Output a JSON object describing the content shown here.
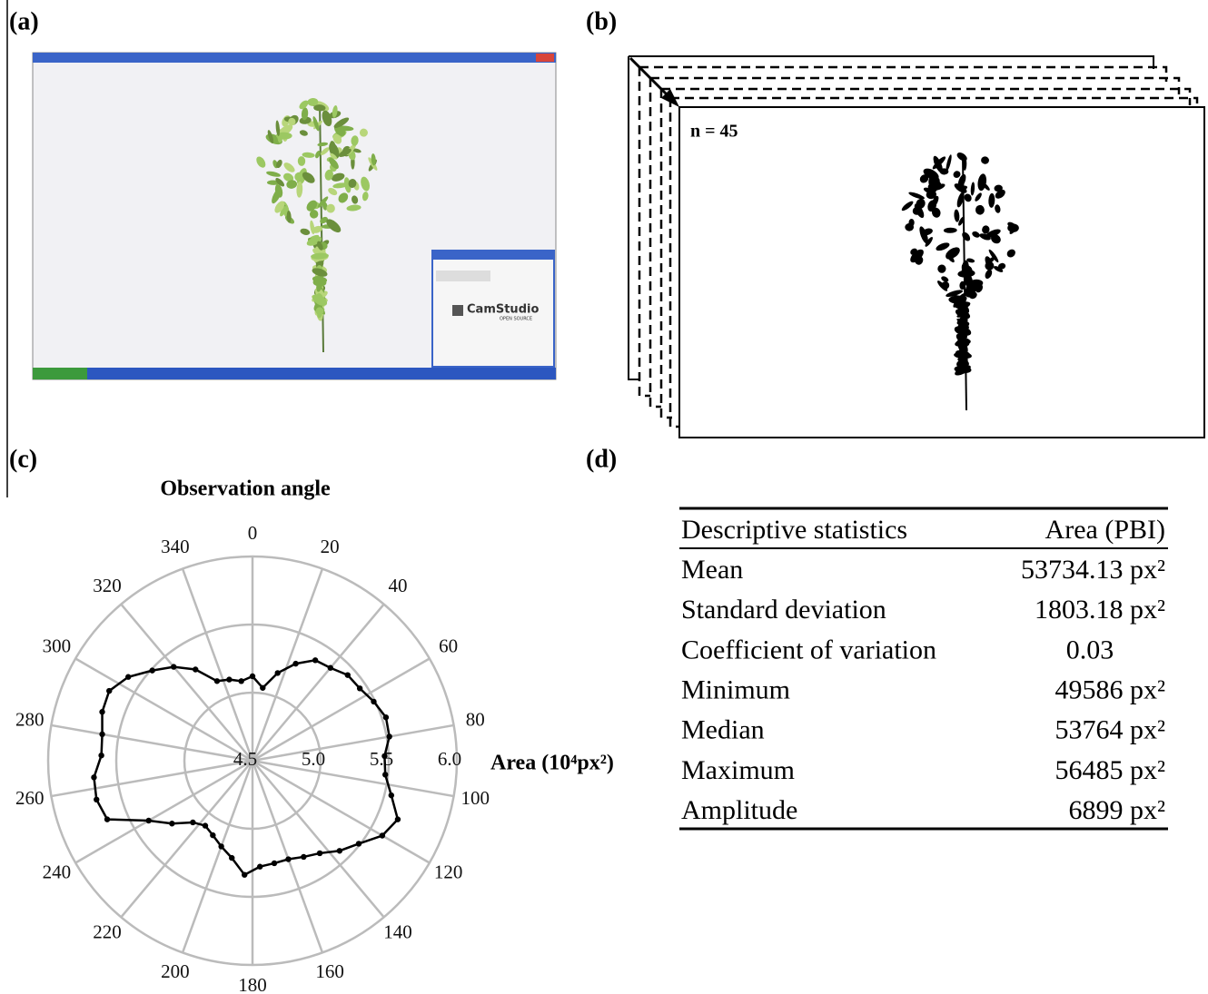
{
  "panels": {
    "a": {
      "label": "(a)",
      "app_name": "CamStudio",
      "app_subtitle": "OPEN SOURCE"
    },
    "b": {
      "label": "(b)",
      "frame_note": "n = 45"
    },
    "c": {
      "label": "(c)"
    },
    "d": {
      "label": "(d)"
    }
  },
  "chart_data": {
    "type": "polar-line",
    "title": "Observation angle",
    "radial_label": "Area (10⁴px²)",
    "color": "#000000",
    "x": [
      0,
      8,
      16,
      24,
      32,
      40,
      48,
      56,
      64,
      72,
      80,
      88,
      96,
      104,
      112,
      120,
      128,
      136,
      144,
      152,
      160,
      168,
      176,
      184,
      192,
      200,
      208,
      216,
      224,
      232,
      240,
      248,
      256,
      264,
      272,
      280,
      288,
      296,
      304,
      312,
      320,
      328,
      336,
      344,
      352
    ],
    "values": [
      5.12,
      5.04,
      5.17,
      5.28,
      5.37,
      5.39,
      5.44,
      5.45,
      5.49,
      5.53,
      5.52,
      5.47,
      5.48,
      5.55,
      5.65,
      5.6,
      5.49,
      5.42,
      5.34,
      5.3,
      5.27,
      5.27,
      5.28,
      5.34,
      5.23,
      5.17,
      5.12,
      5.09,
      5.13,
      5.25,
      5.38,
      5.65,
      5.68,
      5.67,
      5.61,
      5.62,
      5.66,
      5.67,
      5.6,
      5.49,
      5.4,
      5.29,
      5.14,
      5.12,
      5.09
    ],
    "xticks": [
      0,
      20,
      40,
      60,
      80,
      100,
      120,
      140,
      160,
      180,
      200,
      220,
      240,
      260,
      280,
      300,
      320,
      340
    ],
    "ylim": [
      4.5,
      6.0
    ],
    "yticks": [
      {
        "value": 4.5,
        "label": "4.5"
      },
      {
        "value": 5.0,
        "label": "5.0"
      },
      {
        "value": 5.5,
        "label": "5.5"
      },
      {
        "value": 6.0,
        "label": "6.0"
      }
    ],
    "grid": true
  },
  "table": {
    "header": [
      "Descriptive statistics",
      "Area (PBI)"
    ],
    "rows": [
      [
        "Mean",
        "53734.13 px²"
      ],
      [
        "Standard deviation",
        "1803.18 px²"
      ],
      [
        "Coefficient of variation",
        "0.03"
      ],
      [
        "Minimum",
        "49586 px²"
      ],
      [
        "Median",
        "53764 px²"
      ],
      [
        "Maximum",
        "56485 px²"
      ],
      [
        "Amplitude",
        "6899 px²"
      ]
    ]
  }
}
